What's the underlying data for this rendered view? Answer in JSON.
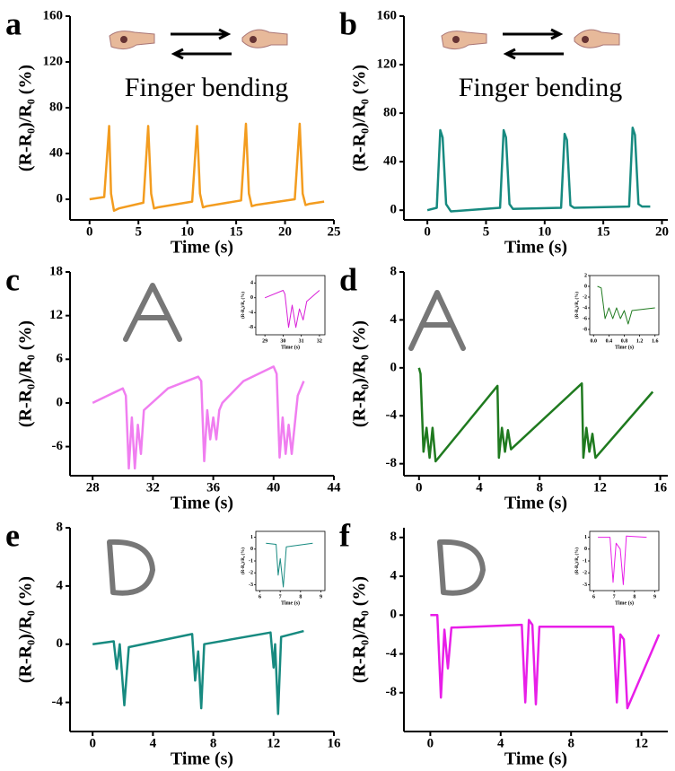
{
  "chart_data": [
    {
      "type": "line",
      "panel_label": "a",
      "annotation": "Finger bending",
      "x_label": "Time (s)",
      "y_label": "(R-R₀)/R₀ (%)",
      "x": [
        0,
        1.5,
        2,
        2.2,
        2.5,
        3,
        5.5,
        6,
        6.3,
        6.6,
        7,
        10.5,
        11,
        11.3,
        11.6,
        12,
        15.5,
        16,
        16.3,
        16.6,
        17,
        21,
        21.5,
        21.8,
        22.1,
        22.5,
        24
      ],
      "series": [
        {
          "color": "#f39c1f",
          "values": [
            0,
            2,
            64,
            5,
            -10,
            -8,
            -3,
            64,
            5,
            -8,
            -7,
            -2,
            64,
            5,
            -7,
            -6,
            -1,
            66,
            5,
            -6,
            -5,
            0,
            66,
            5,
            -5,
            -4,
            -2
          ]
        }
      ],
      "xlim": [
        -2,
        25
      ],
      "ylim": [
        -18,
        160
      ],
      "xticks": [
        0,
        5,
        10,
        15,
        20,
        25
      ],
      "yticks": [
        0,
        40,
        80,
        120,
        160
      ]
    },
    {
      "type": "line",
      "panel_label": "b",
      "annotation": "Finger bending",
      "x_label": "Time (s)",
      "y_label": "(R-R₀)/R₀ (%)",
      "x": [
        0,
        0.8,
        1.1,
        1.3,
        1.6,
        2,
        6.2,
        6.5,
        6.7,
        7,
        7.3,
        11.4,
        11.7,
        11.9,
        12.2,
        12.5,
        17.2,
        17.5,
        17.7,
        18,
        18.3,
        19
      ],
      "series": [
        {
          "color": "#178a80",
          "values": [
            0,
            2,
            66,
            60,
            5,
            -1,
            2,
            66,
            60,
            5,
            1,
            2,
            63,
            58,
            4,
            2,
            3,
            68,
            62,
            5,
            3,
            3
          ]
        }
      ],
      "xlim": [
        -2,
        20.5
      ],
      "ylim": [
        -8,
        160
      ],
      "xticks": [
        0,
        5,
        10,
        15,
        20
      ],
      "yticks": [
        0,
        40,
        80,
        120,
        160
      ]
    },
    {
      "type": "line",
      "panel_label": "c",
      "x_label": "Time (s)",
      "y_label": "(R-R₀)/R₀ (%)",
      "x": [
        28,
        29,
        30,
        30.2,
        30.4,
        30.6,
        30.8,
        31,
        31.2,
        31.4,
        33,
        35,
        35.2,
        35.4,
        35.6,
        35.8,
        36,
        36.2,
        36.4,
        36.6,
        38,
        40,
        40.2,
        40.4,
        40.6,
        40.8,
        41,
        41.2,
        41.6,
        42
      ],
      "series": [
        {
          "color": "#f07ef0",
          "values": [
            0,
            1,
            2,
            1,
            -9,
            -2,
            -9,
            -3,
            -7,
            -1,
            2,
            3.6,
            3,
            -8,
            -1,
            -5,
            -2,
            -5,
            -1,
            0,
            3,
            5,
            4,
            -7.5,
            -2,
            -7,
            -3,
            -7,
            1,
            3
          ]
        }
      ],
      "xlim": [
        26.5,
        44
      ],
      "ylim": [
        -10,
        18
      ],
      "xticks": [
        28,
        32,
        36,
        40,
        44
      ],
      "yticks": [
        -6,
        0,
        6,
        12,
        18
      ],
      "inset": {
        "x_label": "Time (s)",
        "y_label": "(R-R₀)/R₀ (%)",
        "x": [
          29,
          30,
          30.1,
          30.3,
          30.5,
          30.7,
          30.9,
          31.1,
          31.3,
          32
        ],
        "series": [
          {
            "color": "#d81ed8",
            "values": [
              0,
              2,
              1,
              -8,
              -2,
              -8,
              -3,
              -6,
              -1,
              2
            ]
          }
        ],
        "xlim": [
          28.5,
          32.3
        ],
        "ylim": [
          -10,
          6
        ],
        "xticks": [
          29,
          30,
          31,
          32
        ],
        "yticks": [
          -8,
          -4,
          0,
          4
        ]
      }
    },
    {
      "type": "line",
      "panel_label": "d",
      "x_label": "Time (s)",
      "y_label": "(R-R₀)/R₀ (%)",
      "x": [
        0,
        0.1,
        0.3,
        0.5,
        0.7,
        0.9,
        1.1,
        5.2,
        5.3,
        5.5,
        5.7,
        5.9,
        6.1,
        10.8,
        10.9,
        11.1,
        11.3,
        11.5,
        11.7,
        15.5
      ],
      "series": [
        {
          "color": "#1f7a1f",
          "values": [
            0,
            -0.5,
            -7,
            -5,
            -7.5,
            -5,
            -7.8,
            -1.5,
            -7.5,
            -5,
            -7,
            -5.2,
            -6.8,
            -1.3,
            -7.5,
            -5,
            -7,
            -5.5,
            -7.5,
            -2
          ]
        }
      ],
      "xlim": [
        -1,
        16.5
      ],
      "ylim": [
        -9,
        8
      ],
      "xticks": [
        0,
        4,
        8,
        12,
        16
      ],
      "yticks": [
        -8,
        -4,
        0,
        4,
        8
      ],
      "inset": {
        "x_label": "Time (s)",
        "y_label": "(R-R₀)/R₀ (%)",
        "x": [
          0.1,
          0.2,
          0.3,
          0.4,
          0.5,
          0.6,
          0.7,
          0.8,
          0.9,
          1.0,
          1.6
        ],
        "series": [
          {
            "color": "#1f7a1f",
            "values": [
              0,
              -0.3,
              -6,
              -4,
              -6,
              -4,
              -6,
              -4.5,
              -7,
              -4.5,
              -4
            ]
          }
        ],
        "xlim": [
          -0.1,
          1.7
        ],
        "ylim": [
          -9,
          2
        ],
        "xticks": [
          {
            "value": 0,
            "label": "0.0"
          },
          0.4,
          0.8,
          1.2,
          1.6
        ],
        "yticks": [
          -8,
          -6,
          -4,
          -2,
          0,
          2
        ]
      }
    },
    {
      "type": "line",
      "panel_label": "e",
      "x_label": "Time (s)",
      "y_label": "(R-R₀)/R₀ (%)",
      "x": [
        0,
        1.4,
        1.6,
        1.8,
        2.1,
        2.4,
        6.6,
        6.8,
        7,
        7.2,
        7.4,
        11.8,
        12,
        12.1,
        12.3,
        12.5,
        14
      ],
      "series": [
        {
          "color": "#178a80",
          "values": [
            0,
            0.2,
            -1.7,
            0,
            -4.2,
            -0.2,
            0.7,
            -2.5,
            -0.5,
            -4.4,
            0,
            0.8,
            -1.6,
            0,
            -4.8,
            0.5,
            0.9
          ]
        }
      ],
      "xlim": [
        -1.5,
        16
      ],
      "ylim": [
        -6,
        8
      ],
      "xticks": [
        0,
        4,
        8,
        12,
        16
      ],
      "yticks": [
        -4,
        0,
        4,
        8
      ],
      "inset": {
        "x_label": "Time (s)",
        "y_label": "(R-R₀)/R₀ (%)",
        "x": [
          6.3,
          6.8,
          6.9,
          7.0,
          7.15,
          7.3,
          8.6
        ],
        "series": [
          {
            "color": "#178a80",
            "values": [
              0.5,
              0.4,
              -2.2,
              -0.8,
              -3.2,
              0.2,
              0.5
            ]
          }
        ],
        "xlim": [
          5.8,
          9.2
        ],
        "ylim": [
          -3.5,
          1.5
        ],
        "xticks": [
          6,
          7,
          8,
          9
        ],
        "yticks": [
          -3,
          -2,
          -1,
          0,
          1
        ]
      }
    },
    {
      "type": "line",
      "panel_label": "f",
      "x_label": "Time (s)",
      "y_label": "(R-R₀)/R₀ (%)",
      "x": [
        0,
        0.4,
        0.6,
        0.8,
        1.0,
        1.2,
        5.2,
        5.4,
        5.6,
        5.8,
        6.0,
        6.2,
        10.4,
        10.6,
        10.8,
        11.0,
        11.2,
        13
      ],
      "series": [
        {
          "color": "#e81ee8",
          "values": [
            0,
            0,
            -8.5,
            -1.5,
            -5.5,
            -1.3,
            -1,
            -9,
            -0.5,
            -1,
            -9.2,
            -1.2,
            -1.2,
            -9,
            -2,
            -2.5,
            -9.6,
            -2
          ]
        }
      ],
      "xlim": [
        -1.5,
        13.5
      ],
      "ylim": [
        -12,
        9
      ],
      "xticks": [
        0,
        4,
        8,
        12
      ],
      "yticks": [
        -8,
        -4,
        0,
        4,
        8
      ],
      "inset": {
        "x_label": "Time (s)",
        "y_label": "(R-R₀)/R₀ (%)",
        "x": [
          6.2,
          6.8,
          6.95,
          7.1,
          7.3,
          7.45,
          7.6,
          8.6
        ],
        "series": [
          {
            "color": "#e81ee8",
            "values": [
              1,
              1,
              -2.8,
              0.5,
              0,
              -3,
              1.1,
              1
            ]
          }
        ],
        "xlim": [
          5.8,
          9.2
        ],
        "ylim": [
          -3.5,
          1.5
        ],
        "xticks": [
          6,
          7,
          8,
          9
        ],
        "yticks": [
          -3,
          -2,
          -1,
          0,
          1
        ]
      }
    }
  ]
}
